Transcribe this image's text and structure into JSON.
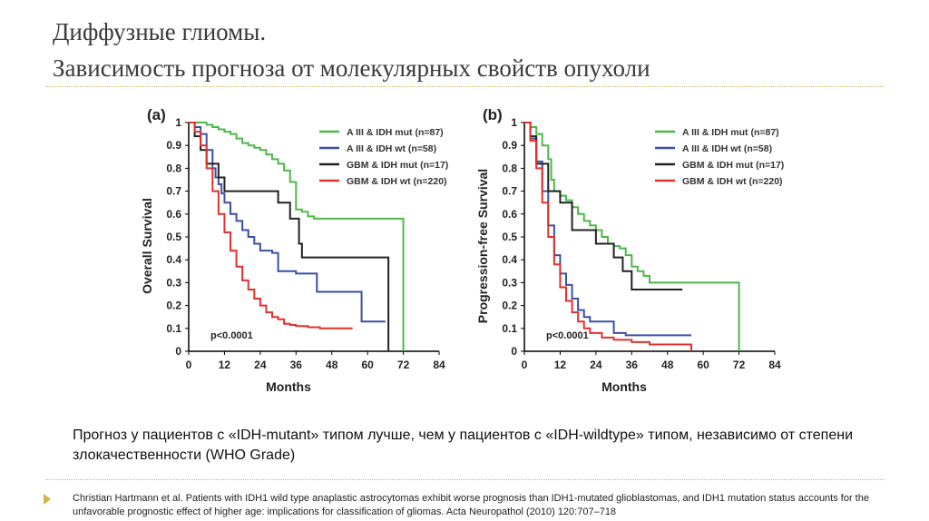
{
  "title_line1": "Диффузные глиомы.",
  "title_line2": "Зависимость прогноза от молекулярных свойств опухоли",
  "caption": "Прогноз у пациентов с «IDH-mutant» типом лучше, чем у пациентов с «IDH-wildtype» типом, независимо от степени злокачественности (WHO Grade)",
  "reference": "Christian Hartmann et al. Patients with IDH1 wild type anaplastic astrocytomas exhibit worse prognosis than IDH1-mutated glioblastomas, and IDH1 mutation status accounts for the unfavorable prognostic effect of higher age: implications for classification of gliomas. Acta Neuropathol (2010) 120:707–718",
  "colors": {
    "green": "#4cb848",
    "blue": "#3a4fa8",
    "black": "#222222",
    "red": "#e0322d"
  },
  "chart_data": [
    {
      "type": "line",
      "panel_label": "(a)",
      "ylabel": "Overall Survival",
      "xlabel": "Months",
      "xlim": [
        0,
        84
      ],
      "ylim": [
        0,
        1
      ],
      "xticks": [
        0,
        12,
        24,
        36,
        48,
        60,
        72,
        84
      ],
      "yticks": [
        0,
        0.1,
        0.2,
        0.3,
        0.4,
        0.5,
        0.6,
        0.7,
        0.8,
        0.9,
        1
      ],
      "annotation": "p<0.0001",
      "legend_position": "top-right",
      "series": [
        {
          "name": "A III & IDH mut (n=87)",
          "color": "green",
          "points": [
            [
              0,
              1
            ],
            [
              4,
              1
            ],
            [
              6,
              0.99
            ],
            [
              8,
              0.98
            ],
            [
              10,
              0.97
            ],
            [
              12,
              0.96
            ],
            [
              14,
              0.95
            ],
            [
              16,
              0.93
            ],
            [
              18,
              0.91
            ],
            [
              20,
              0.9
            ],
            [
              22,
              0.89
            ],
            [
              24,
              0.88
            ],
            [
              26,
              0.86
            ],
            [
              28,
              0.84
            ],
            [
              30,
              0.82
            ],
            [
              32,
              0.79
            ],
            [
              34,
              0.74
            ],
            [
              36,
              0.62
            ],
            [
              38,
              0.61
            ],
            [
              40,
              0.59
            ],
            [
              42,
              0.58
            ],
            [
              54,
              0.58
            ],
            [
              72,
              0.58
            ],
            [
              72,
              0
            ]
          ]
        },
        {
          "name": "A III & IDH wt (n=58)",
          "color": "blue",
          "points": [
            [
              0,
              1
            ],
            [
              2,
              0.98
            ],
            [
              4,
              0.95
            ],
            [
              6,
              0.88
            ],
            [
              8,
              0.8
            ],
            [
              9,
              0.76
            ],
            [
              10,
              0.73
            ],
            [
              11,
              0.69
            ],
            [
              12,
              0.65
            ],
            [
              14,
              0.6
            ],
            [
              16,
              0.57
            ],
            [
              18,
              0.53
            ],
            [
              20,
              0.5
            ],
            [
              22,
              0.47
            ],
            [
              24,
              0.44
            ],
            [
              28,
              0.43
            ],
            [
              30,
              0.35
            ],
            [
              36,
              0.34
            ],
            [
              41,
              0.34
            ],
            [
              43,
              0.26
            ],
            [
              58,
              0.26
            ],
            [
              58,
              0.13
            ],
            [
              66,
              0.13
            ]
          ]
        },
        {
          "name": "GBM & IDH mut (n=17)",
          "color": "black",
          "points": [
            [
              0,
              1
            ],
            [
              2,
              0.94
            ],
            [
              4,
              0.88
            ],
            [
              6,
              0.82
            ],
            [
              9,
              0.82
            ],
            [
              10,
              0.76
            ],
            [
              12,
              0.7
            ],
            [
              30,
              0.7
            ],
            [
              30,
              0.65
            ],
            [
              34,
              0.65
            ],
            [
              34,
              0.58
            ],
            [
              36,
              0.58
            ],
            [
              37,
              0.47
            ],
            [
              38,
              0.41
            ],
            [
              67,
              0.41
            ],
            [
              67,
              0
            ]
          ]
        },
        {
          "name": "GBM & IDH wt (n=220)",
          "color": "red",
          "points": [
            [
              0,
              1
            ],
            [
              2,
              0.96
            ],
            [
              4,
              0.9
            ],
            [
              6,
              0.8
            ],
            [
              8,
              0.7
            ],
            [
              10,
              0.6
            ],
            [
              12,
              0.52
            ],
            [
              14,
              0.44
            ],
            [
              16,
              0.37
            ],
            [
              18,
              0.31
            ],
            [
              20,
              0.27
            ],
            [
              22,
              0.23
            ],
            [
              24,
              0.2
            ],
            [
              26,
              0.17
            ],
            [
              28,
              0.15
            ],
            [
              30,
              0.14
            ],
            [
              32,
              0.12
            ],
            [
              34,
              0.115
            ],
            [
              36,
              0.11
            ],
            [
              40,
              0.105
            ],
            [
              44,
              0.1
            ],
            [
              48,
              0.1
            ],
            [
              55,
              0.1
            ]
          ]
        }
      ]
    },
    {
      "type": "line",
      "panel_label": "(b)",
      "ylabel": "Progression-free Survival",
      "xlabel": "Months",
      "xlim": [
        0,
        84
      ],
      "ylim": [
        0,
        1
      ],
      "xticks": [
        0,
        12,
        24,
        36,
        48,
        60,
        72,
        84
      ],
      "yticks": [
        0,
        0.1,
        0.2,
        0.3,
        0.4,
        0.5,
        0.6,
        0.7,
        0.8,
        0.9,
        1
      ],
      "annotation": "p<0.0001",
      "legend_position": "top-right",
      "series": [
        {
          "name": "A III & IDH mut (n=87)",
          "color": "green",
          "points": [
            [
              0,
              1
            ],
            [
              2,
              0.98
            ],
            [
              4,
              0.95
            ],
            [
              6,
              0.9
            ],
            [
              8,
              0.84
            ],
            [
              9,
              0.75
            ],
            [
              10,
              0.7
            ],
            [
              12,
              0.68
            ],
            [
              14,
              0.66
            ],
            [
              16,
              0.63
            ],
            [
              18,
              0.6
            ],
            [
              20,
              0.57
            ],
            [
              22,
              0.55
            ],
            [
              24,
              0.53
            ],
            [
              26,
              0.5
            ],
            [
              28,
              0.47
            ],
            [
              30,
              0.46
            ],
            [
              32,
              0.45
            ],
            [
              34,
              0.42
            ],
            [
              36,
              0.37
            ],
            [
              38,
              0.35
            ],
            [
              40,
              0.33
            ],
            [
              42,
              0.3
            ],
            [
              60,
              0.3
            ],
            [
              72,
              0.3
            ],
            [
              72,
              0
            ]
          ]
        },
        {
          "name": "A III & IDH wt (n=58)",
          "color": "blue",
          "points": [
            [
              0,
              1
            ],
            [
              2,
              0.93
            ],
            [
              4,
              0.83
            ],
            [
              6,
              0.7
            ],
            [
              8,
              0.55
            ],
            [
              10,
              0.42
            ],
            [
              12,
              0.34
            ],
            [
              14,
              0.29
            ],
            [
              16,
              0.23
            ],
            [
              18,
              0.18
            ],
            [
              20,
              0.15
            ],
            [
              22,
              0.13
            ],
            [
              28,
              0.13
            ],
            [
              30,
              0.08
            ],
            [
              34,
              0.07
            ],
            [
              40,
              0.07
            ],
            [
              56,
              0.07
            ]
          ]
        },
        {
          "name": "GBM & IDH mut (n=17)",
          "color": "black",
          "points": [
            [
              0,
              1
            ],
            [
              2,
              0.94
            ],
            [
              4,
              0.82
            ],
            [
              8,
              0.82
            ],
            [
              8,
              0.7
            ],
            [
              12,
              0.7
            ],
            [
              12,
              0.65
            ],
            [
              16,
              0.65
            ],
            [
              16,
              0.53
            ],
            [
              24,
              0.53
            ],
            [
              24,
              0.47
            ],
            [
              30,
              0.47
            ],
            [
              30,
              0.41
            ],
            [
              33,
              0.41
            ],
            [
              33,
              0.35
            ],
            [
              36,
              0.35
            ],
            [
              36,
              0.27
            ],
            [
              53,
              0.27
            ]
          ]
        },
        {
          "name": "GBM & IDH wt (n=220)",
          "color": "red",
          "points": [
            [
              0,
              1
            ],
            [
              2,
              0.92
            ],
            [
              4,
              0.8
            ],
            [
              6,
              0.65
            ],
            [
              8,
              0.5
            ],
            [
              10,
              0.38
            ],
            [
              12,
              0.28
            ],
            [
              14,
              0.22
            ],
            [
              16,
              0.17
            ],
            [
              18,
              0.13
            ],
            [
              20,
              0.1
            ],
            [
              22,
              0.08
            ],
            [
              26,
              0.06
            ],
            [
              30,
              0.05
            ],
            [
              36,
              0.04
            ],
            [
              42,
              0.03
            ],
            [
              56,
              0.03
            ],
            [
              56,
              0
            ]
          ]
        }
      ]
    }
  ]
}
